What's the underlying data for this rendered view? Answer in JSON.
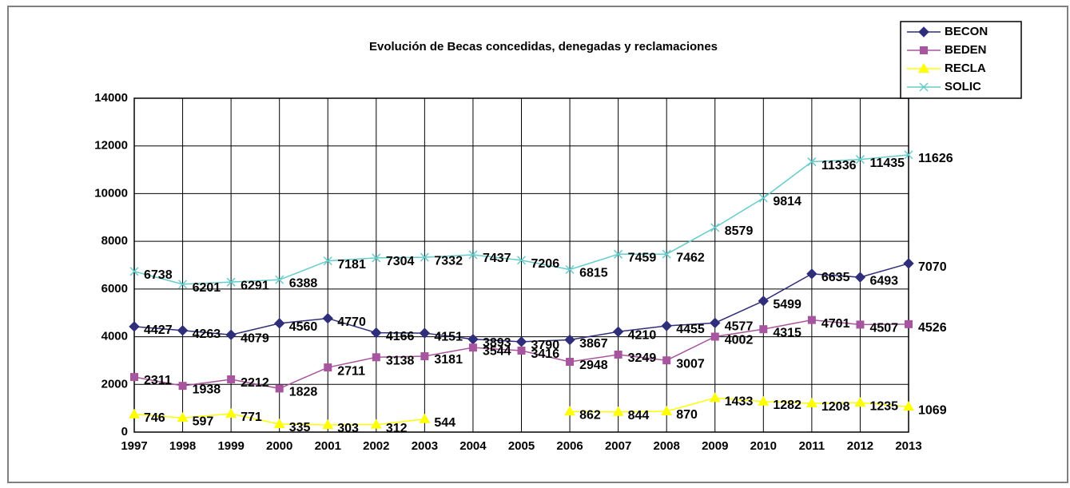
{
  "chart_data": {
    "type": "line",
    "title": "Evolución de Becas concedidas, denegadas y reclamaciones",
    "categories": [
      "1997",
      "1998",
      "1999",
      "2000",
      "2001",
      "2002",
      "2003",
      "2004",
      "2005",
      "2006",
      "2007",
      "2008",
      "2009",
      "2010",
      "2011",
      "2012",
      "2013"
    ],
    "series": [
      {
        "name": "BECON",
        "color": "#2e2e7a",
        "marker": "diamond",
        "values": [
          4427,
          4263,
          4079,
          4560,
          4770,
          4166,
          4151,
          3893,
          3790,
          3867,
          4210,
          4455,
          4577,
          5499,
          6635,
          6493,
          7070
        ]
      },
      {
        "name": "BEDEN",
        "color": "#a855a0",
        "marker": "square",
        "values": [
          2311,
          1938,
          2212,
          1828,
          2711,
          3138,
          3181,
          3544,
          3416,
          2948,
          3249,
          3007,
          4002,
          4315,
          4701,
          4507,
          4526
        ]
      },
      {
        "name": "RECLA",
        "color": "#ffff00",
        "marker": "triangle",
        "values": [
          746,
          597,
          771,
          335,
          303,
          312,
          544,
          null,
          null,
          862,
          844,
          870,
          1433,
          1282,
          1208,
          1235,
          1069
        ]
      },
      {
        "name": "SOLIC",
        "color": "#66cccc",
        "marker": "cross",
        "values": [
          6738,
          6201,
          6291,
          6388,
          7181,
          7304,
          7332,
          7437,
          7206,
          6815,
          7459,
          7462,
          8579,
          9814,
          11336,
          11435,
          11626
        ]
      }
    ],
    "ylim": [
      0,
      14000
    ],
    "yticks": [
      0,
      2000,
      4000,
      6000,
      8000,
      10000,
      12000,
      14000
    ],
    "grid": true,
    "legend": "upper right"
  }
}
